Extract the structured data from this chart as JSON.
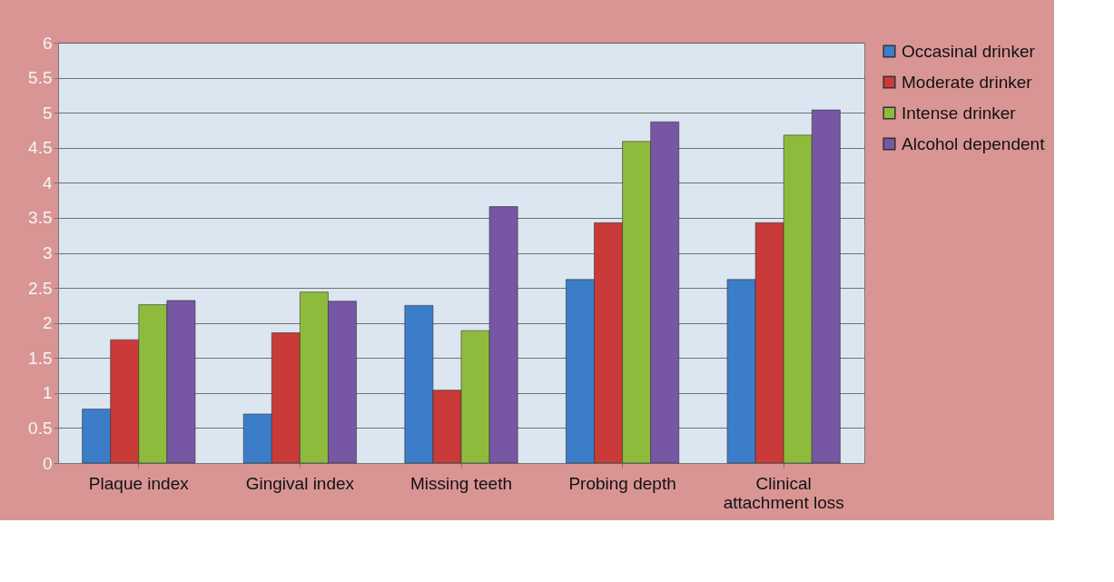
{
  "chart_data": {
    "type": "bar",
    "categories": [
      "Plaque index",
      "Gingival index",
      "Missing teeth",
      "Probing depth",
      "Clinical attachment loss"
    ],
    "series": [
      {
        "name": "Occasinal drinker",
        "color": "#3b7dc9",
        "values": [
          0.77,
          0.7,
          2.25,
          2.62,
          2.62
        ]
      },
      {
        "name": "Moderate drinker",
        "color": "#c93a38",
        "values": [
          1.76,
          1.86,
          1.04,
          3.43,
          3.43
        ]
      },
      {
        "name": "Intense drinker",
        "color": "#8fbb3c",
        "values": [
          2.26,
          2.44,
          1.89,
          4.59,
          4.68
        ]
      },
      {
        "name": "Alcohol dependent",
        "color": "#7756a3",
        "values": [
          2.32,
          2.31,
          3.66,
          4.87,
          5.04
        ]
      }
    ],
    "ylim": [
      0,
      6
    ],
    "yticks": [
      0,
      0.5,
      1,
      1.5,
      2,
      2.5,
      3,
      3.5,
      4,
      4.5,
      5,
      5.5,
      6
    ],
    "grid": "y",
    "legend": "right"
  }
}
